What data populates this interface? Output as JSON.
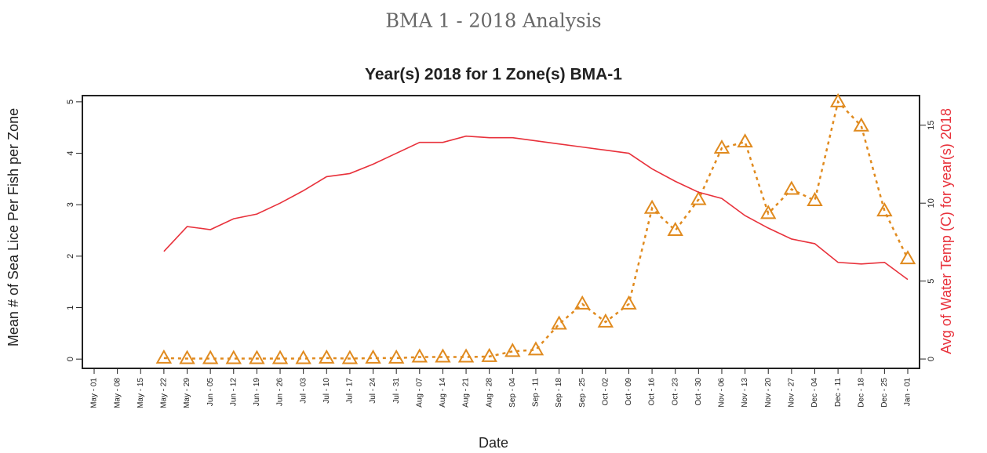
{
  "page_title": "BMA 1 - 2018 Analysis",
  "chart_data": {
    "type": "line",
    "title": "Year(s) 2018  for  1  Zone(s)  BMA-1",
    "x_label": "Date",
    "y_label": "Mean # of Sea Lice Per Fish per Zone",
    "y2_label": "Avg of Water Temp (C) for year(s) 2018",
    "categories": [
      "May - 01",
      "May - 08",
      "May - 15",
      "May - 22",
      "May - 29",
      "Jun - 05",
      "Jun - 12",
      "Jun - 19",
      "Jun - 26",
      "Jul - 03",
      "Jul - 10",
      "Jul - 17",
      "Jul - 24",
      "Jul - 31",
      "Aug - 07",
      "Aug - 14",
      "Aug - 21",
      "Aug - 28",
      "Sep - 04",
      "Sep - 11",
      "Sep - 18",
      "Sep - 25",
      "Oct - 02",
      "Oct - 09",
      "Oct - 16",
      "Oct - 23",
      "Oct - 30",
      "Nov - 06",
      "Nov - 13",
      "Nov - 20",
      "Nov - 27",
      "Dec - 04",
      "Dec - 11",
      "Dec - 18",
      "Dec - 25",
      "Jan - 01"
    ],
    "series": [
      {
        "color": "#e08a1e",
        "marker": "triangle",
        "dashed": true,
        "values": [
          null,
          null,
          null,
          0.02,
          0.01,
          0.01,
          0.01,
          0.01,
          0.01,
          0.01,
          0.02,
          0.01,
          0.02,
          0.02,
          0.04,
          0.04,
          0.04,
          0.05,
          0.15,
          0.18,
          0.68,
          1.07,
          0.72,
          1.07,
          2.93,
          2.5,
          3.1,
          4.1,
          4.22,
          2.83,
          3.3,
          3.08,
          5.0,
          4.53,
          2.88,
          1.95
        ]
      },
      {
        "color": "#e8313b",
        "axis": "y2",
        "values": [
          null,
          null,
          null,
          6.9,
          8.5,
          8.3,
          9.0,
          9.3,
          10.0,
          10.8,
          11.7,
          11.9,
          12.5,
          13.2,
          13.9,
          13.9,
          14.3,
          14.2,
          14.2,
          14.0,
          13.8,
          13.6,
          13.4,
          13.2,
          12.2,
          11.4,
          10.7,
          10.3,
          9.2,
          8.4,
          7.7,
          7.4,
          6.2,
          6.1,
          6.2,
          5.1
        ]
      }
    ],
    "ylim": [
      -0.18,
      5.12
    ],
    "yticks": [
      0,
      1,
      2,
      3,
      4,
      5
    ],
    "y2lim": [
      -0.6,
      16.9
    ],
    "y2ticks": [
      0,
      5,
      10,
      15
    ],
    "y2_color": "#e8313b"
  }
}
